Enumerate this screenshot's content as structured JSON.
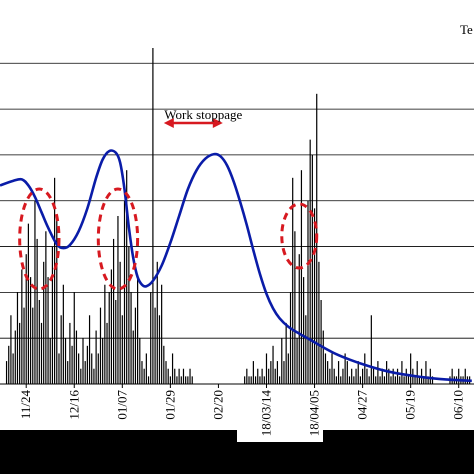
{
  "chart_data": {
    "type": "bar",
    "title": "",
    "corner_label": "Te",
    "xlabel": "",
    "ylabel": "",
    "grid": true,
    "tick_labels": [
      {
        "label": "11/24",
        "day": 0
      },
      {
        "label": "12/16",
        "day": 22
      },
      {
        "label": "01/07",
        "day": 44
      },
      {
        "label": "01/29",
        "day": 66
      },
      {
        "label": "02/20",
        "day": 88
      },
      {
        "label": "18/03/14",
        "day": 110
      },
      {
        "label": "18/04/05",
        "day": 132
      },
      {
        "label": "04/27",
        "day": 154
      },
      {
        "label": "05/19",
        "day": 176
      },
      {
        "label": "06/10",
        "day": 198
      }
    ],
    "annotation": {
      "text": "Work stoppage",
      "from_day": 63,
      "to_day": 90,
      "color": "#d71920"
    },
    "highlight_ellipses": [
      {
        "center_day": 6,
        "color": "#d71920"
      },
      {
        "center_day": 42,
        "color": "#d71920"
      },
      {
        "center_day": 125,
        "color": "#d71920"
      }
    ],
    "series": [
      {
        "type": "bar",
        "color": "#000000",
        "points": [
          [
            -9,
            3
          ],
          [
            -8,
            5
          ],
          [
            -7,
            9
          ],
          [
            -6,
            4
          ],
          [
            -5,
            7
          ],
          [
            -4,
            12
          ],
          [
            -3,
            8
          ],
          [
            -2,
            15
          ],
          [
            -1,
            10
          ],
          [
            0,
            17
          ],
          [
            1,
            21
          ],
          [
            2,
            14
          ],
          [
            3,
            10
          ],
          [
            4,
            24
          ],
          [
            5,
            19
          ],
          [
            6,
            11
          ],
          [
            7,
            8
          ],
          [
            8,
            16
          ],
          [
            9,
            20
          ],
          [
            10,
            14
          ],
          [
            11,
            6
          ],
          [
            12,
            18
          ],
          [
            13,
            27
          ],
          [
            14,
            22
          ],
          [
            15,
            4
          ],
          [
            16,
            9
          ],
          [
            17,
            13
          ],
          [
            18,
            6
          ],
          [
            19,
            3
          ],
          [
            20,
            8
          ],
          [
            21,
            5
          ],
          [
            22,
            12
          ],
          [
            23,
            7
          ],
          [
            24,
            4
          ],
          [
            25,
            2
          ],
          [
            26,
            6
          ],
          [
            27,
            3
          ],
          [
            28,
            5
          ],
          [
            29,
            9
          ],
          [
            30,
            4
          ],
          [
            31,
            2
          ],
          [
            32,
            7
          ],
          [
            33,
            4
          ],
          [
            34,
            10
          ],
          [
            35,
            6
          ],
          [
            36,
            13
          ],
          [
            37,
            8
          ],
          [
            38,
            12
          ],
          [
            39,
            15
          ],
          [
            40,
            19
          ],
          [
            41,
            11
          ],
          [
            42,
            22
          ],
          [
            43,
            16
          ],
          [
            44,
            9
          ],
          [
            45,
            24
          ],
          [
            46,
            28
          ],
          [
            47,
            18
          ],
          [
            48,
            12
          ],
          [
            49,
            7
          ],
          [
            50,
            10
          ],
          [
            51,
            14
          ],
          [
            52,
            6
          ],
          [
            53,
            3
          ],
          [
            54,
            2
          ],
          [
            55,
            4
          ],
          [
            56,
            1
          ],
          [
            57,
            12
          ],
          [
            58,
            44
          ],
          [
            59,
            10
          ],
          [
            60,
            16
          ],
          [
            61,
            9
          ],
          [
            62,
            13
          ],
          [
            63,
            5
          ],
          [
            64,
            3
          ],
          [
            65,
            2
          ],
          [
            66,
            1
          ],
          [
            67,
            4
          ],
          [
            68,
            2
          ],
          [
            69,
            1
          ],
          [
            70,
            2
          ],
          [
            71,
            1
          ],
          [
            72,
            2
          ],
          [
            73,
            1
          ],
          [
            74,
            1
          ],
          [
            75,
            2
          ],
          [
            76,
            1
          ],
          [
            100,
            1
          ],
          [
            101,
            2
          ],
          [
            102,
            1
          ],
          [
            103,
            1
          ],
          [
            104,
            3
          ],
          [
            105,
            1
          ],
          [
            106,
            2
          ],
          [
            107,
            1
          ],
          [
            108,
            2
          ],
          [
            109,
            1
          ],
          [
            110,
            4
          ],
          [
            111,
            2
          ],
          [
            112,
            3
          ],
          [
            113,
            5
          ],
          [
            114,
            2
          ],
          [
            115,
            3
          ],
          [
            116,
            1
          ],
          [
            117,
            6
          ],
          [
            118,
            3
          ],
          [
            119,
            8
          ],
          [
            120,
            4
          ],
          [
            121,
            12
          ],
          [
            122,
            27
          ],
          [
            123,
            20
          ],
          [
            124,
            6
          ],
          [
            125,
            17
          ],
          [
            126,
            28
          ],
          [
            127,
            14
          ],
          [
            128,
            9
          ],
          [
            129,
            24
          ],
          [
            130,
            32
          ],
          [
            131,
            30
          ],
          [
            132,
            23
          ],
          [
            133,
            38
          ],
          [
            134,
            16
          ],
          [
            135,
            11
          ],
          [
            136,
            7
          ],
          [
            137,
            4
          ],
          [
            138,
            3
          ],
          [
            139,
            2
          ],
          [
            140,
            4
          ],
          [
            141,
            2
          ],
          [
            142,
            1
          ],
          [
            143,
            3
          ],
          [
            144,
            1
          ],
          [
            145,
            2
          ],
          [
            146,
            4
          ],
          [
            147,
            3
          ],
          [
            148,
            1
          ],
          [
            149,
            2
          ],
          [
            150,
            1
          ],
          [
            151,
            2
          ],
          [
            152,
            3
          ],
          [
            153,
            1
          ],
          [
            154,
            2
          ],
          [
            155,
            4
          ],
          [
            156,
            2
          ],
          [
            157,
            1
          ],
          [
            158,
            9
          ],
          [
            159,
            2
          ],
          [
            160,
            1
          ],
          [
            161,
            3
          ],
          [
            162,
            1
          ],
          [
            163,
            2
          ],
          [
            164,
            1
          ],
          [
            165,
            3
          ],
          [
            166,
            2
          ],
          [
            167,
            1
          ],
          [
            168,
            2
          ],
          [
            169,
            1
          ],
          [
            170,
            2
          ],
          [
            171,
            1
          ],
          [
            172,
            3
          ],
          [
            173,
            1
          ],
          [
            174,
            2
          ],
          [
            175,
            1
          ],
          [
            176,
            4
          ],
          [
            177,
            2
          ],
          [
            178,
            1
          ],
          [
            179,
            3
          ],
          [
            180,
            1
          ],
          [
            181,
            2
          ],
          [
            182,
            1
          ],
          [
            183,
            3
          ],
          [
            184,
            1
          ],
          [
            185,
            2
          ],
          [
            186,
            1
          ],
          [
            194,
            1
          ],
          [
            195,
            2
          ],
          [
            196,
            1
          ],
          [
            197,
            1
          ],
          [
            198,
            2
          ],
          [
            199,
            1
          ],
          [
            200,
            1
          ],
          [
            201,
            2
          ],
          [
            202,
            1
          ],
          [
            203,
            1
          ]
        ]
      },
      {
        "type": "line",
        "color": "#0a1ca8",
        "points": [
          [
            -12,
            26
          ],
          [
            -6,
            26.6
          ],
          [
            -2,
            26.8
          ],
          [
            1,
            26
          ],
          [
            4,
            24.5
          ],
          [
            7,
            22.5
          ],
          [
            10,
            20.5
          ],
          [
            14,
            18.3
          ],
          [
            17,
            17.8
          ],
          [
            20,
            18.2
          ],
          [
            24,
            20
          ],
          [
            28,
            23
          ],
          [
            32,
            27
          ],
          [
            35,
            29.4
          ],
          [
            38,
            30.5
          ],
          [
            41,
            30.3
          ],
          [
            43,
            29
          ],
          [
            45,
            25.5
          ],
          [
            47,
            20.5
          ],
          [
            49,
            16.5
          ],
          [
            51,
            14
          ],
          [
            53,
            13
          ],
          [
            55,
            12.8
          ],
          [
            58,
            13.5
          ],
          [
            62,
            15.5
          ],
          [
            66,
            18.5
          ],
          [
            70,
            22
          ],
          [
            74,
            25.5
          ],
          [
            78,
            28
          ],
          [
            82,
            29.5
          ],
          [
            86,
            30.1
          ],
          [
            89,
            29.8
          ],
          [
            92,
            28.6
          ],
          [
            95,
            26.5
          ],
          [
            98,
            23.8
          ],
          [
            101,
            20.8
          ],
          [
            104,
            17.5
          ],
          [
            107,
            14.4
          ],
          [
            110,
            11.8
          ],
          [
            113,
            9.9
          ],
          [
            116,
            8.6
          ],
          [
            120,
            7.5
          ],
          [
            125,
            6.6
          ],
          [
            130,
            5.8
          ],
          [
            136,
            4.8
          ],
          [
            142,
            3.9
          ],
          [
            148,
            3.2
          ],
          [
            155,
            2.5
          ],
          [
            162,
            1.9
          ],
          [
            168,
            1.5
          ],
          [
            174,
            1.2
          ],
          [
            180,
            0.95
          ],
          [
            186,
            0.75
          ],
          [
            192,
            0.6
          ],
          [
            198,
            0.5
          ],
          [
            204,
            0.42
          ]
        ]
      }
    ],
    "x_range_days": [
      -12,
      205
    ],
    "y_range": [
      0,
      44
    ],
    "y_gridlines": [
      0,
      6,
      12,
      18,
      24,
      30,
      36,
      42
    ]
  }
}
